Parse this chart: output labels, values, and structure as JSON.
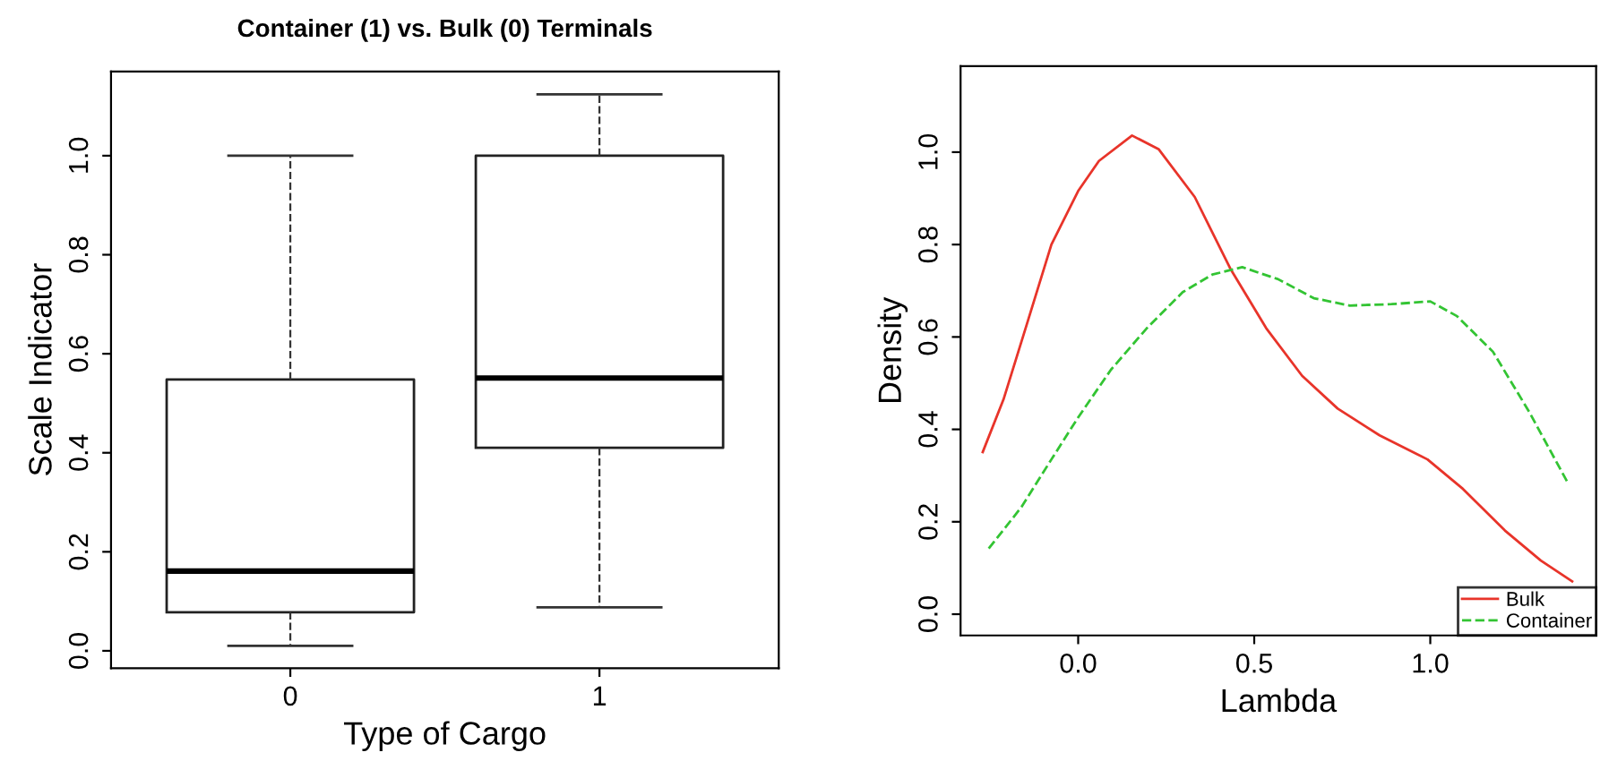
{
  "chart_data": [
    {
      "type": "box",
      "title": "Container (1) vs. Bulk (0) Terminals",
      "xlabel": "Type of Cargo",
      "ylabel": "Scale Indicator",
      "categories": [
        "0",
        "1"
      ],
      "boxes": [
        {
          "low": 0.01,
          "q1": 0.078,
          "median": 0.161,
          "q3": 0.548,
          "high": 1.0
        },
        {
          "low": 0.088,
          "q1": 0.41,
          "median": 0.551,
          "q3": 1.0,
          "high": 1.124
        }
      ],
      "ylim": [
        -0.035,
        1.17
      ],
      "yticks": [
        {
          "value": 0,
          "label": "0.0"
        },
        {
          "value": 0.2,
          "label": "0.2"
        },
        {
          "value": 0.4,
          "label": "0.4"
        },
        {
          "value": 0.6,
          "label": "0.6"
        },
        {
          "value": 0.8,
          "label": "0.8"
        },
        {
          "value": 1.0,
          "label": "1.0"
        }
      ],
      "grid": false
    },
    {
      "type": "line",
      "xlabel": "Lambda",
      "ylabel": "Density",
      "legend": "bottom right",
      "grid": false,
      "xlim": [
        -0.334,
        1.471
      ],
      "ylim": [
        -0.046,
        1.186
      ],
      "xticks": [
        {
          "value": 0,
          "label": "0.0"
        },
        0.5,
        {
          "value": 1.0,
          "label": "1.0"
        }
      ],
      "yticks": [
        {
          "value": 0,
          "label": "0.0"
        },
        {
          "value": 0.2,
          "label": "0.2"
        },
        {
          "value": 0.4,
          "label": "0.4"
        },
        {
          "value": 0.6,
          "label": "0.6"
        },
        {
          "value": 0.8,
          "label": "0.8"
        },
        {
          "value": 1.0,
          "label": "1.0"
        }
      ],
      "series": [
        {
          "name": "Bulk",
          "color": "#e8342a",
          "line_style": "solid",
          "x": [
            -0.271,
            -0.212,
            -0.144,
            -0.076,
            0,
            0.059,
            0.153,
            0.229,
            0.331,
            0.432,
            0.534,
            0.636,
            0.737,
            0.856,
            0.992,
            1.093,
            1.212,
            1.314,
            1.403
          ],
          "values": [
            0.351,
            0.465,
            0.632,
            0.8,
            0.916,
            0.981,
            1.036,
            1.006,
            0.903,
            0.748,
            0.619,
            0.516,
            0.445,
            0.387,
            0.335,
            0.271,
            0.181,
            0.116,
            0.071
          ]
        },
        {
          "name": "Container",
          "color": "#33c433",
          "line_style": "dashed",
          "x": [
            -0.254,
            -0.161,
            -0.076,
            0,
            0.093,
            0.195,
            0.297,
            0.381,
            0.466,
            0.568,
            0.669,
            0.771,
            0.89,
            1.0,
            1.076,
            1.178,
            1.28,
            1.393
          ],
          "values": [
            0.142,
            0.232,
            0.335,
            0.426,
            0.529,
            0.619,
            0.697,
            0.735,
            0.751,
            0.725,
            0.684,
            0.668,
            0.671,
            0.677,
            0.645,
            0.568,
            0.439,
            0.281
          ]
        }
      ]
    }
  ]
}
